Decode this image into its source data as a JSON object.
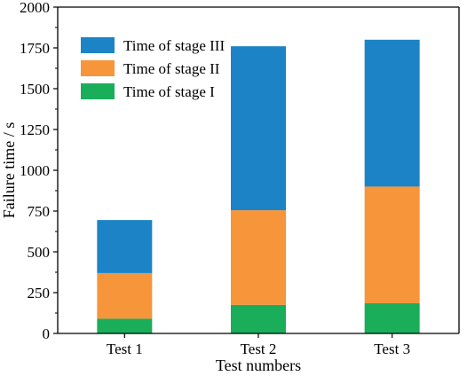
{
  "chart_data": {
    "type": "bar",
    "stacked": true,
    "categories": [
      "Test 1",
      "Test 2",
      "Test 3"
    ],
    "series": [
      {
        "name": "Time of stage I",
        "color": "#1aae5a",
        "values": [
          90,
          175,
          185
        ]
      },
      {
        "name": "Time of stage II",
        "color": "#f7953a",
        "values": [
          280,
          580,
          715
        ]
      },
      {
        "name": "Time of stage III",
        "color": "#1c84c6",
        "values": [
          325,
          1005,
          900
        ]
      }
    ],
    "xlabel": "Test numbers",
    "ylabel": "Failure time / s",
    "ylim": [
      0,
      2000
    ],
    "yticks": [
      "0",
      "250",
      "500",
      "750",
      "1000",
      "1250",
      "1500",
      "1750",
      "2000"
    ],
    "legend": {
      "position": "top-left",
      "order": [
        "Time of stage III",
        "Time of stage II",
        "Time of stage I"
      ]
    },
    "grid": false
  }
}
